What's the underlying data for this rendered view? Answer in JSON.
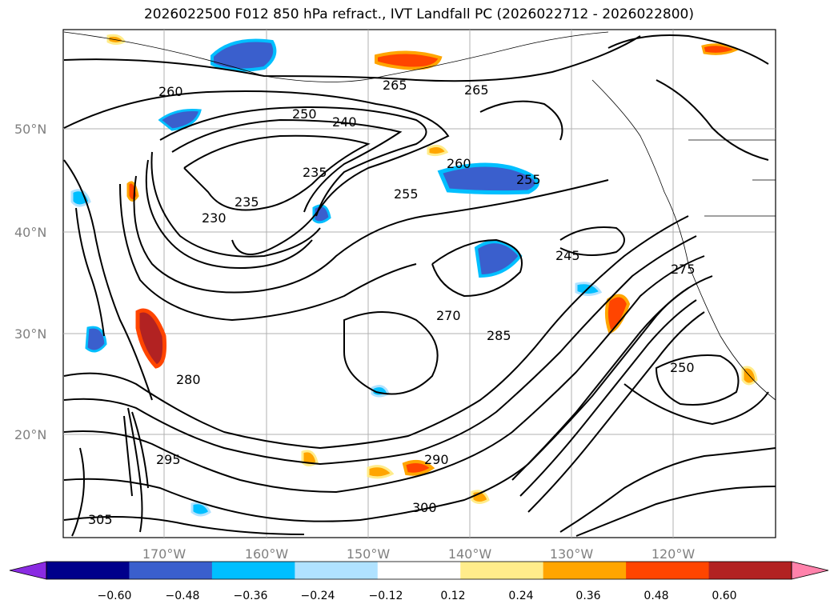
{
  "title": "2026022500 F012 850 hPa refract., IVT Landfall PC (2026022712 - 2026022800)",
  "lat_labels": [
    "50°N",
    "40°N",
    "30°N",
    "20°N"
  ],
  "lon_labels": [
    "170°W",
    "160°W",
    "150°W",
    "140°W",
    "130°W",
    "120°W"
  ],
  "contour_labels": [
    "250",
    "240",
    "235",
    "235",
    "230",
    "255",
    "260",
    "265",
    "245",
    "250",
    "255",
    "260",
    "265",
    "270",
    "275",
    "280",
    "285",
    "290",
    "295",
    "300",
    "305"
  ],
  "colorbar": {
    "ticks": [
      "−0.60",
      "−0.48",
      "−0.36",
      "−0.24",
      "−0.12",
      "0.12",
      "0.24",
      "0.36",
      "0.48",
      "0.60"
    ],
    "colors": [
      "#8a2be2",
      "#00008b",
      "#3a5fcd",
      "#00bfff",
      "#b0e2ff",
      "#ffffff",
      "#ffec8b",
      "#ffa500",
      "#ff4500",
      "#b22222",
      "#ff82ab"
    ]
  }
}
